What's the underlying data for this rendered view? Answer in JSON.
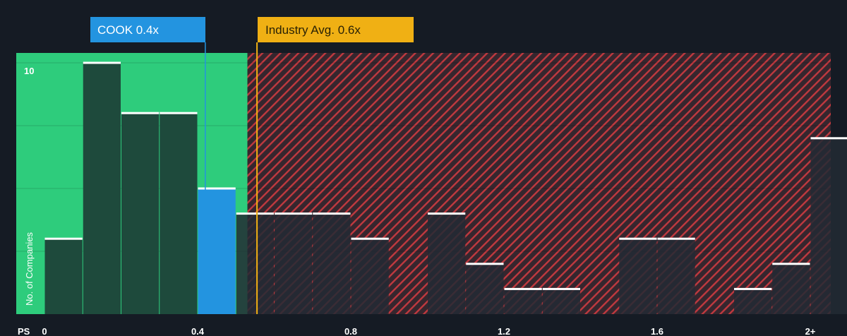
{
  "chart_data": {
    "type": "bar",
    "x_tick_labels": [
      "0",
      "0.4",
      "0.8",
      "1.2",
      "1.6",
      "2+"
    ],
    "x_tick_values": [
      0,
      0.4,
      0.8,
      1.2,
      1.6,
      2.0
    ],
    "x_axis_label": "PS",
    "ylabel": "No. of Companies",
    "y_tick_labels": [
      "10"
    ],
    "y_tick_values": [
      10
    ],
    "ylim": [
      0,
      10.5
    ],
    "bin_width": 0.1,
    "bars": [
      {
        "x": 0.0,
        "value": 3
      },
      {
        "x": 0.1,
        "value": 10
      },
      {
        "x": 0.2,
        "value": 8
      },
      {
        "x": 0.3,
        "value": 8
      },
      {
        "x": 0.4,
        "value": 5
      },
      {
        "x": 0.5,
        "value": 4
      },
      {
        "x": 0.6,
        "value": 4
      },
      {
        "x": 0.7,
        "value": 4
      },
      {
        "x": 0.8,
        "value": 3
      },
      {
        "x": 1.0,
        "value": 4
      },
      {
        "x": 1.1,
        "value": 2
      },
      {
        "x": 1.2,
        "value": 1
      },
      {
        "x": 1.3,
        "value": 1
      },
      {
        "x": 1.5,
        "value": 3
      },
      {
        "x": 1.6,
        "value": 3
      },
      {
        "x": 1.8,
        "value": 1
      },
      {
        "x": 1.9,
        "value": 2
      },
      {
        "x": 2.0,
        "value": 7
      }
    ],
    "company": {
      "label": "COOK 0.4x",
      "value": 0.42,
      "highlight_bin_x": 0.4
    },
    "industry": {
      "label": "Industry Avg. 0.6x",
      "value": 0.555
    },
    "fair_zone_max": 0.53,
    "grid": true,
    "colors": {
      "background": "#151b24",
      "fair_zone": "#2ecc7c",
      "bar_in_zone": "#1e4a3c",
      "bar_out_zone": "#222a34",
      "bar_top": "#ffffff",
      "highlight_bar": "#2394e0",
      "hatch_background": "#36262e",
      "hatch_stripe": "#c0393f",
      "company_callout": "#2394e0",
      "industry_callout": "#f0b014",
      "industry_text": "#2a2205",
      "text": "#ffffff"
    }
  }
}
